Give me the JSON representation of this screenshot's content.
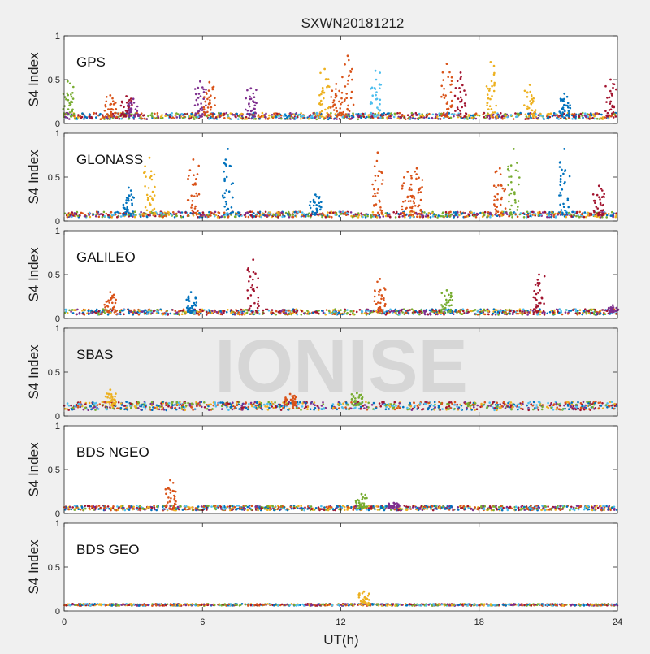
{
  "title": "SXWN20181212",
  "watermark": "IONISE",
  "xlabel": "UT(h)",
  "ylabel": "S4 Index",
  "colors": [
    "#0072bd",
    "#d95319",
    "#edb120",
    "#7e2f8e",
    "#77ac30",
    "#4dbeee",
    "#a2142f"
  ],
  "chart_data": [
    {
      "type": "scatter",
      "title": "GPS",
      "xlabel": "",
      "ylabel": "S4 Index",
      "xlim": [
        0,
        24
      ],
      "ylim": [
        0,
        1
      ],
      "xticks": [
        0,
        6,
        12,
        18,
        24
      ],
      "yticks": [
        0,
        0.5,
        1
      ],
      "ytick_labels": [
        "0",
        "0.5",
        "1"
      ],
      "baseline": 0.08,
      "spikes": [
        {
          "x": 0.15,
          "y": 0.48,
          "c": 4
        },
        {
          "x": 2.0,
          "y": 0.32,
          "c": 1
        },
        {
          "x": 2.7,
          "y": 0.31,
          "c": 6
        },
        {
          "x": 3.0,
          "y": 0.28,
          "c": 3
        },
        {
          "x": 5.9,
          "y": 0.48,
          "c": 3
        },
        {
          "x": 6.3,
          "y": 0.47,
          "c": 1
        },
        {
          "x": 8.1,
          "y": 0.4,
          "c": 3
        },
        {
          "x": 11.3,
          "y": 0.62,
          "c": 2
        },
        {
          "x": 11.8,
          "y": 0.45,
          "c": 1
        },
        {
          "x": 12.3,
          "y": 0.77,
          "c": 1
        },
        {
          "x": 13.5,
          "y": 0.6,
          "c": 5
        },
        {
          "x": 16.6,
          "y": 0.68,
          "c": 1
        },
        {
          "x": 17.2,
          "y": 0.58,
          "c": 6
        },
        {
          "x": 18.5,
          "y": 0.7,
          "c": 2
        },
        {
          "x": 20.2,
          "y": 0.44,
          "c": 2
        },
        {
          "x": 21.7,
          "y": 0.34,
          "c": 0
        },
        {
          "x": 23.7,
          "y": 0.5,
          "c": 6
        }
      ]
    },
    {
      "type": "scatter",
      "title": "GLONASS",
      "xlabel": "",
      "ylabel": "S4 Index",
      "xlim": [
        0,
        24
      ],
      "ylim": [
        0,
        1
      ],
      "xticks": [
        0,
        6,
        12,
        18,
        24
      ],
      "yticks": [
        0,
        0.5,
        1
      ],
      "ytick_labels": [
        "0",
        "0.5",
        "1"
      ],
      "baseline": 0.07,
      "spikes": [
        {
          "x": 2.8,
          "y": 0.38,
          "c": 0
        },
        {
          "x": 3.7,
          "y": 0.72,
          "c": 2
        },
        {
          "x": 5.6,
          "y": 0.7,
          "c": 1
        },
        {
          "x": 7.1,
          "y": 0.82,
          "c": 0
        },
        {
          "x": 10.9,
          "y": 0.3,
          "c": 0
        },
        {
          "x": 13.6,
          "y": 0.78,
          "c": 1
        },
        {
          "x": 14.9,
          "y": 0.56,
          "c": 1
        },
        {
          "x": 15.3,
          "y": 0.6,
          "c": 1
        },
        {
          "x": 18.9,
          "y": 0.6,
          "c": 1
        },
        {
          "x": 19.5,
          "y": 0.82,
          "c": 4
        },
        {
          "x": 21.7,
          "y": 0.82,
          "c": 0
        },
        {
          "x": 23.2,
          "y": 0.4,
          "c": 6
        }
      ]
    },
    {
      "type": "scatter",
      "title": "GALILEO",
      "xlabel": "",
      "ylabel": "S4 Index",
      "xlim": [
        0,
        24
      ],
      "ylim": [
        0,
        1
      ],
      "xticks": [
        0,
        6,
        12,
        18,
        24
      ],
      "yticks": [
        0,
        0.5,
        1
      ],
      "ytick_labels": [
        "0",
        "0.5",
        "1"
      ],
      "baseline": 0.07,
      "spikes": [
        {
          "x": 2.0,
          "y": 0.3,
          "c": 1
        },
        {
          "x": 5.5,
          "y": 0.3,
          "c": 0
        },
        {
          "x": 8.2,
          "y": 0.67,
          "c": 6
        },
        {
          "x": 13.7,
          "y": 0.45,
          "c": 1
        },
        {
          "x": 16.6,
          "y": 0.32,
          "c": 4
        },
        {
          "x": 20.6,
          "y": 0.5,
          "c": 6
        },
        {
          "x": 23.8,
          "y": 0.15,
          "c": 3
        }
      ]
    },
    {
      "type": "scatter",
      "title": "SBAS",
      "xlabel": "",
      "ylabel": "S4 Index",
      "xlim": [
        0,
        24
      ],
      "ylim": [
        0,
        1
      ],
      "xticks": [
        0,
        6,
        12,
        18,
        24
      ],
      "yticks": [
        0,
        0.5,
        1
      ],
      "ytick_labels": [
        "0",
        "0.5",
        "1"
      ],
      "baseline": 0.12,
      "spikes": [
        {
          "x": 2.0,
          "y": 0.3,
          "c": 2
        },
        {
          "x": 9.8,
          "y": 0.25,
          "c": 1
        },
        {
          "x": 12.7,
          "y": 0.26,
          "c": 4
        }
      ]
    },
    {
      "type": "scatter",
      "title": "BDS NGEO",
      "xlabel": "",
      "ylabel": "S4 Index",
      "xlim": [
        0,
        24
      ],
      "ylim": [
        0,
        1
      ],
      "xticks": [
        0,
        6,
        12,
        18,
        24
      ],
      "yticks": [
        0,
        0.5,
        1
      ],
      "ytick_labels": [
        "0",
        "0.5",
        "1"
      ],
      "baseline": 0.06,
      "spikes": [
        {
          "x": 4.6,
          "y": 0.38,
          "c": 1
        },
        {
          "x": 12.9,
          "y": 0.22,
          "c": 4
        },
        {
          "x": 14.3,
          "y": 0.12,
          "c": 3
        }
      ]
    },
    {
      "type": "scatter",
      "title": "BDS GEO",
      "xlabel": "UT(h)",
      "ylabel": "S4 Index",
      "xlim": [
        0,
        24
      ],
      "ylim": [
        0,
        1
      ],
      "xticks": [
        0,
        6,
        12,
        18,
        24
      ],
      "yticks": [
        0,
        0.5,
        1
      ],
      "ytick_labels": [
        "0",
        "0.5",
        "1"
      ],
      "baseline": 0.07,
      "spikes": [
        {
          "x": 13.0,
          "y": 0.22,
          "c": 2
        }
      ]
    }
  ]
}
